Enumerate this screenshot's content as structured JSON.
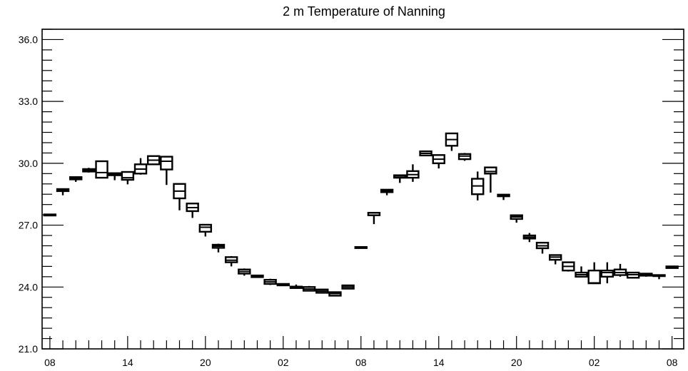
{
  "chart_data": {
    "type": "box",
    "title": "2 m Temperature of Nanning",
    "xlabel": "",
    "ylabel": "",
    "ylim": [
      21.0,
      36.5
    ],
    "y_ticks": [
      "21.0",
      "24.0",
      "27.0",
      "30.0",
      "33.0",
      "36.0"
    ],
    "x_tick_labels": [
      "08",
      "14",
      "20",
      "02",
      "08",
      "14",
      "20",
      "02",
      "08"
    ],
    "x_tick_positions": [
      0,
      6,
      12,
      18,
      24,
      30,
      36,
      42,
      48
    ],
    "xlim": [
      -0.6,
      48.9
    ],
    "boxes": [
      {
        "x": 0,
        "min": 27.48,
        "q1": 27.48,
        "median": 27.5,
        "q3": 27.52,
        "max": 27.52
      },
      {
        "x": 1,
        "min": 28.45,
        "q1": 28.65,
        "median": 28.7,
        "q3": 28.75,
        "max": 28.78
      },
      {
        "x": 2,
        "min": 29.1,
        "q1": 29.22,
        "median": 29.28,
        "q3": 29.33,
        "max": 29.35
      },
      {
        "x": 3,
        "min": 29.55,
        "q1": 29.6,
        "median": 29.65,
        "q3": 29.72,
        "max": 29.78
      },
      {
        "x": 4,
        "min": 29.3,
        "q1": 29.3,
        "median": 29.55,
        "q3": 30.1,
        "max": 30.1
      },
      {
        "x": 5,
        "min": 29.18,
        "q1": 29.42,
        "median": 29.48,
        "q3": 29.52,
        "max": 29.55
      },
      {
        "x": 6,
        "min": 28.98,
        "q1": 29.2,
        "median": 29.3,
        "q3": 29.58,
        "max": 29.6
      },
      {
        "x": 7,
        "min": 29.45,
        "q1": 29.5,
        "median": 29.72,
        "q3": 29.95,
        "max": 30.25
      },
      {
        "x": 8,
        "min": 29.95,
        "q1": 29.95,
        "median": 30.15,
        "q3": 30.35,
        "max": 30.35
      },
      {
        "x": 9,
        "min": 28.95,
        "q1": 29.7,
        "median": 30.1,
        "q3": 30.32,
        "max": 30.35
      },
      {
        "x": 10,
        "min": 27.72,
        "q1": 28.3,
        "median": 28.65,
        "q3": 29.0,
        "max": 29.0
      },
      {
        "x": 11,
        "min": 27.35,
        "q1": 27.68,
        "median": 27.85,
        "q3": 28.05,
        "max": 28.05
      },
      {
        "x": 12,
        "min": 26.45,
        "q1": 26.68,
        "median": 26.9,
        "q3": 27.02,
        "max": 27.05
      },
      {
        "x": 13,
        "min": 25.68,
        "q1": 25.9,
        "median": 25.98,
        "q3": 26.05,
        "max": 26.1
      },
      {
        "x": 14,
        "min": 25.0,
        "q1": 25.2,
        "median": 25.3,
        "q3": 25.45,
        "max": 25.5
      },
      {
        "x": 15,
        "min": 24.55,
        "q1": 24.65,
        "median": 24.75,
        "q3": 24.85,
        "max": 24.9
      },
      {
        "x": 16,
        "min": 24.45,
        "q1": 24.48,
        "median": 24.52,
        "q3": 24.56,
        "max": 24.58
      },
      {
        "x": 17,
        "min": 24.1,
        "q1": 24.15,
        "median": 24.25,
        "q3": 24.35,
        "max": 24.4
      },
      {
        "x": 18,
        "min": 24.05,
        "q1": 24.08,
        "median": 24.12,
        "q3": 24.15,
        "max": 24.18
      },
      {
        "x": 19,
        "min": 23.92,
        "q1": 23.95,
        "median": 23.98,
        "q3": 24.02,
        "max": 24.12
      },
      {
        "x": 20,
        "min": 23.82,
        "q1": 23.82,
        "median": 23.9,
        "q3": 24.0,
        "max": 24.05
      },
      {
        "x": 21,
        "min": 23.68,
        "q1": 23.72,
        "median": 23.8,
        "q3": 23.88,
        "max": 23.9
      },
      {
        "x": 22,
        "min": 23.58,
        "q1": 23.58,
        "median": 23.68,
        "q3": 23.75,
        "max": 23.78
      },
      {
        "x": 23,
        "min": 23.92,
        "q1": 23.92,
        "median": 24.0,
        "q3": 24.08,
        "max": 24.1
      },
      {
        "x": 24,
        "min": 25.9,
        "q1": 25.9,
        "median": 25.92,
        "q3": 25.94,
        "max": 25.96
      },
      {
        "x": 25,
        "min": 27.05,
        "q1": 27.48,
        "median": 27.48,
        "q3": 27.6,
        "max": 27.6
      },
      {
        "x": 26,
        "min": 28.45,
        "q1": 28.6,
        "median": 28.65,
        "q3": 28.72,
        "max": 28.75
      },
      {
        "x": 27,
        "min": 29.05,
        "q1": 29.3,
        "median": 29.38,
        "q3": 29.42,
        "max": 29.45
      },
      {
        "x": 28,
        "min": 29.1,
        "q1": 29.3,
        "median": 29.45,
        "q3": 29.62,
        "max": 29.95
      },
      {
        "x": 29,
        "min": 30.38,
        "q1": 30.38,
        "median": 30.48,
        "q3": 30.58,
        "max": 30.6
      },
      {
        "x": 30,
        "min": 29.75,
        "q1": 30.0,
        "median": 30.2,
        "q3": 30.4,
        "max": 30.42
      },
      {
        "x": 31,
        "min": 30.6,
        "q1": 30.85,
        "median": 31.15,
        "q3": 31.45,
        "max": 31.45
      },
      {
        "x": 32,
        "min": 30.12,
        "q1": 30.2,
        "median": 30.35,
        "q3": 30.45,
        "max": 30.5
      },
      {
        "x": 33,
        "min": 28.2,
        "q1": 28.5,
        "median": 28.9,
        "q3": 29.25,
        "max": 29.6
      },
      {
        "x": 34,
        "min": 28.58,
        "q1": 29.5,
        "median": 29.6,
        "q3": 29.8,
        "max": 29.8
      },
      {
        "x": 35,
        "min": 28.22,
        "q1": 28.4,
        "median": 28.45,
        "q3": 28.48,
        "max": 28.5
      },
      {
        "x": 36,
        "min": 27.12,
        "q1": 27.3,
        "median": 27.4,
        "q3": 27.48,
        "max": 27.5
      },
      {
        "x": 37,
        "min": 26.18,
        "q1": 26.35,
        "median": 26.42,
        "q3": 26.5,
        "max": 26.62
      },
      {
        "x": 38,
        "min": 25.62,
        "q1": 25.88,
        "median": 26.0,
        "q3": 26.15,
        "max": 26.15
      },
      {
        "x": 39,
        "min": 25.1,
        "q1": 25.32,
        "median": 25.45,
        "q3": 25.55,
        "max": 25.55
      },
      {
        "x": 40,
        "min": 24.75,
        "q1": 24.8,
        "median": 25.0,
        "q3": 25.2,
        "max": 25.2
      },
      {
        "x": 41,
        "min": 24.5,
        "q1": 24.5,
        "median": 24.6,
        "q3": 24.7,
        "max": 25.0
      },
      {
        "x": 42,
        "min": 24.18,
        "q1": 24.18,
        "median": 24.2,
        "q3": 24.8,
        "max": 25.2
      },
      {
        "x": 43,
        "min": 24.18,
        "q1": 24.5,
        "median": 24.7,
        "q3": 24.8,
        "max": 25.2
      },
      {
        "x": 44,
        "min": 24.5,
        "q1": 24.58,
        "median": 24.7,
        "q3": 24.85,
        "max": 25.12
      },
      {
        "x": 45,
        "min": 24.45,
        "q1": 24.45,
        "median": 24.6,
        "q3": 24.7,
        "max": 24.7
      },
      {
        "x": 46,
        "min": 24.5,
        "q1": 24.55,
        "median": 24.6,
        "q3": 24.65,
        "max": 24.68
      },
      {
        "x": 47,
        "min": 24.38,
        "q1": 24.55,
        "median": 24.58,
        "q3": 24.58,
        "max": 24.6
      },
      {
        "x": 48,
        "min": 24.9,
        "q1": 24.92,
        "median": 24.95,
        "q3": 25.0,
        "max": 25.02
      }
    ]
  }
}
